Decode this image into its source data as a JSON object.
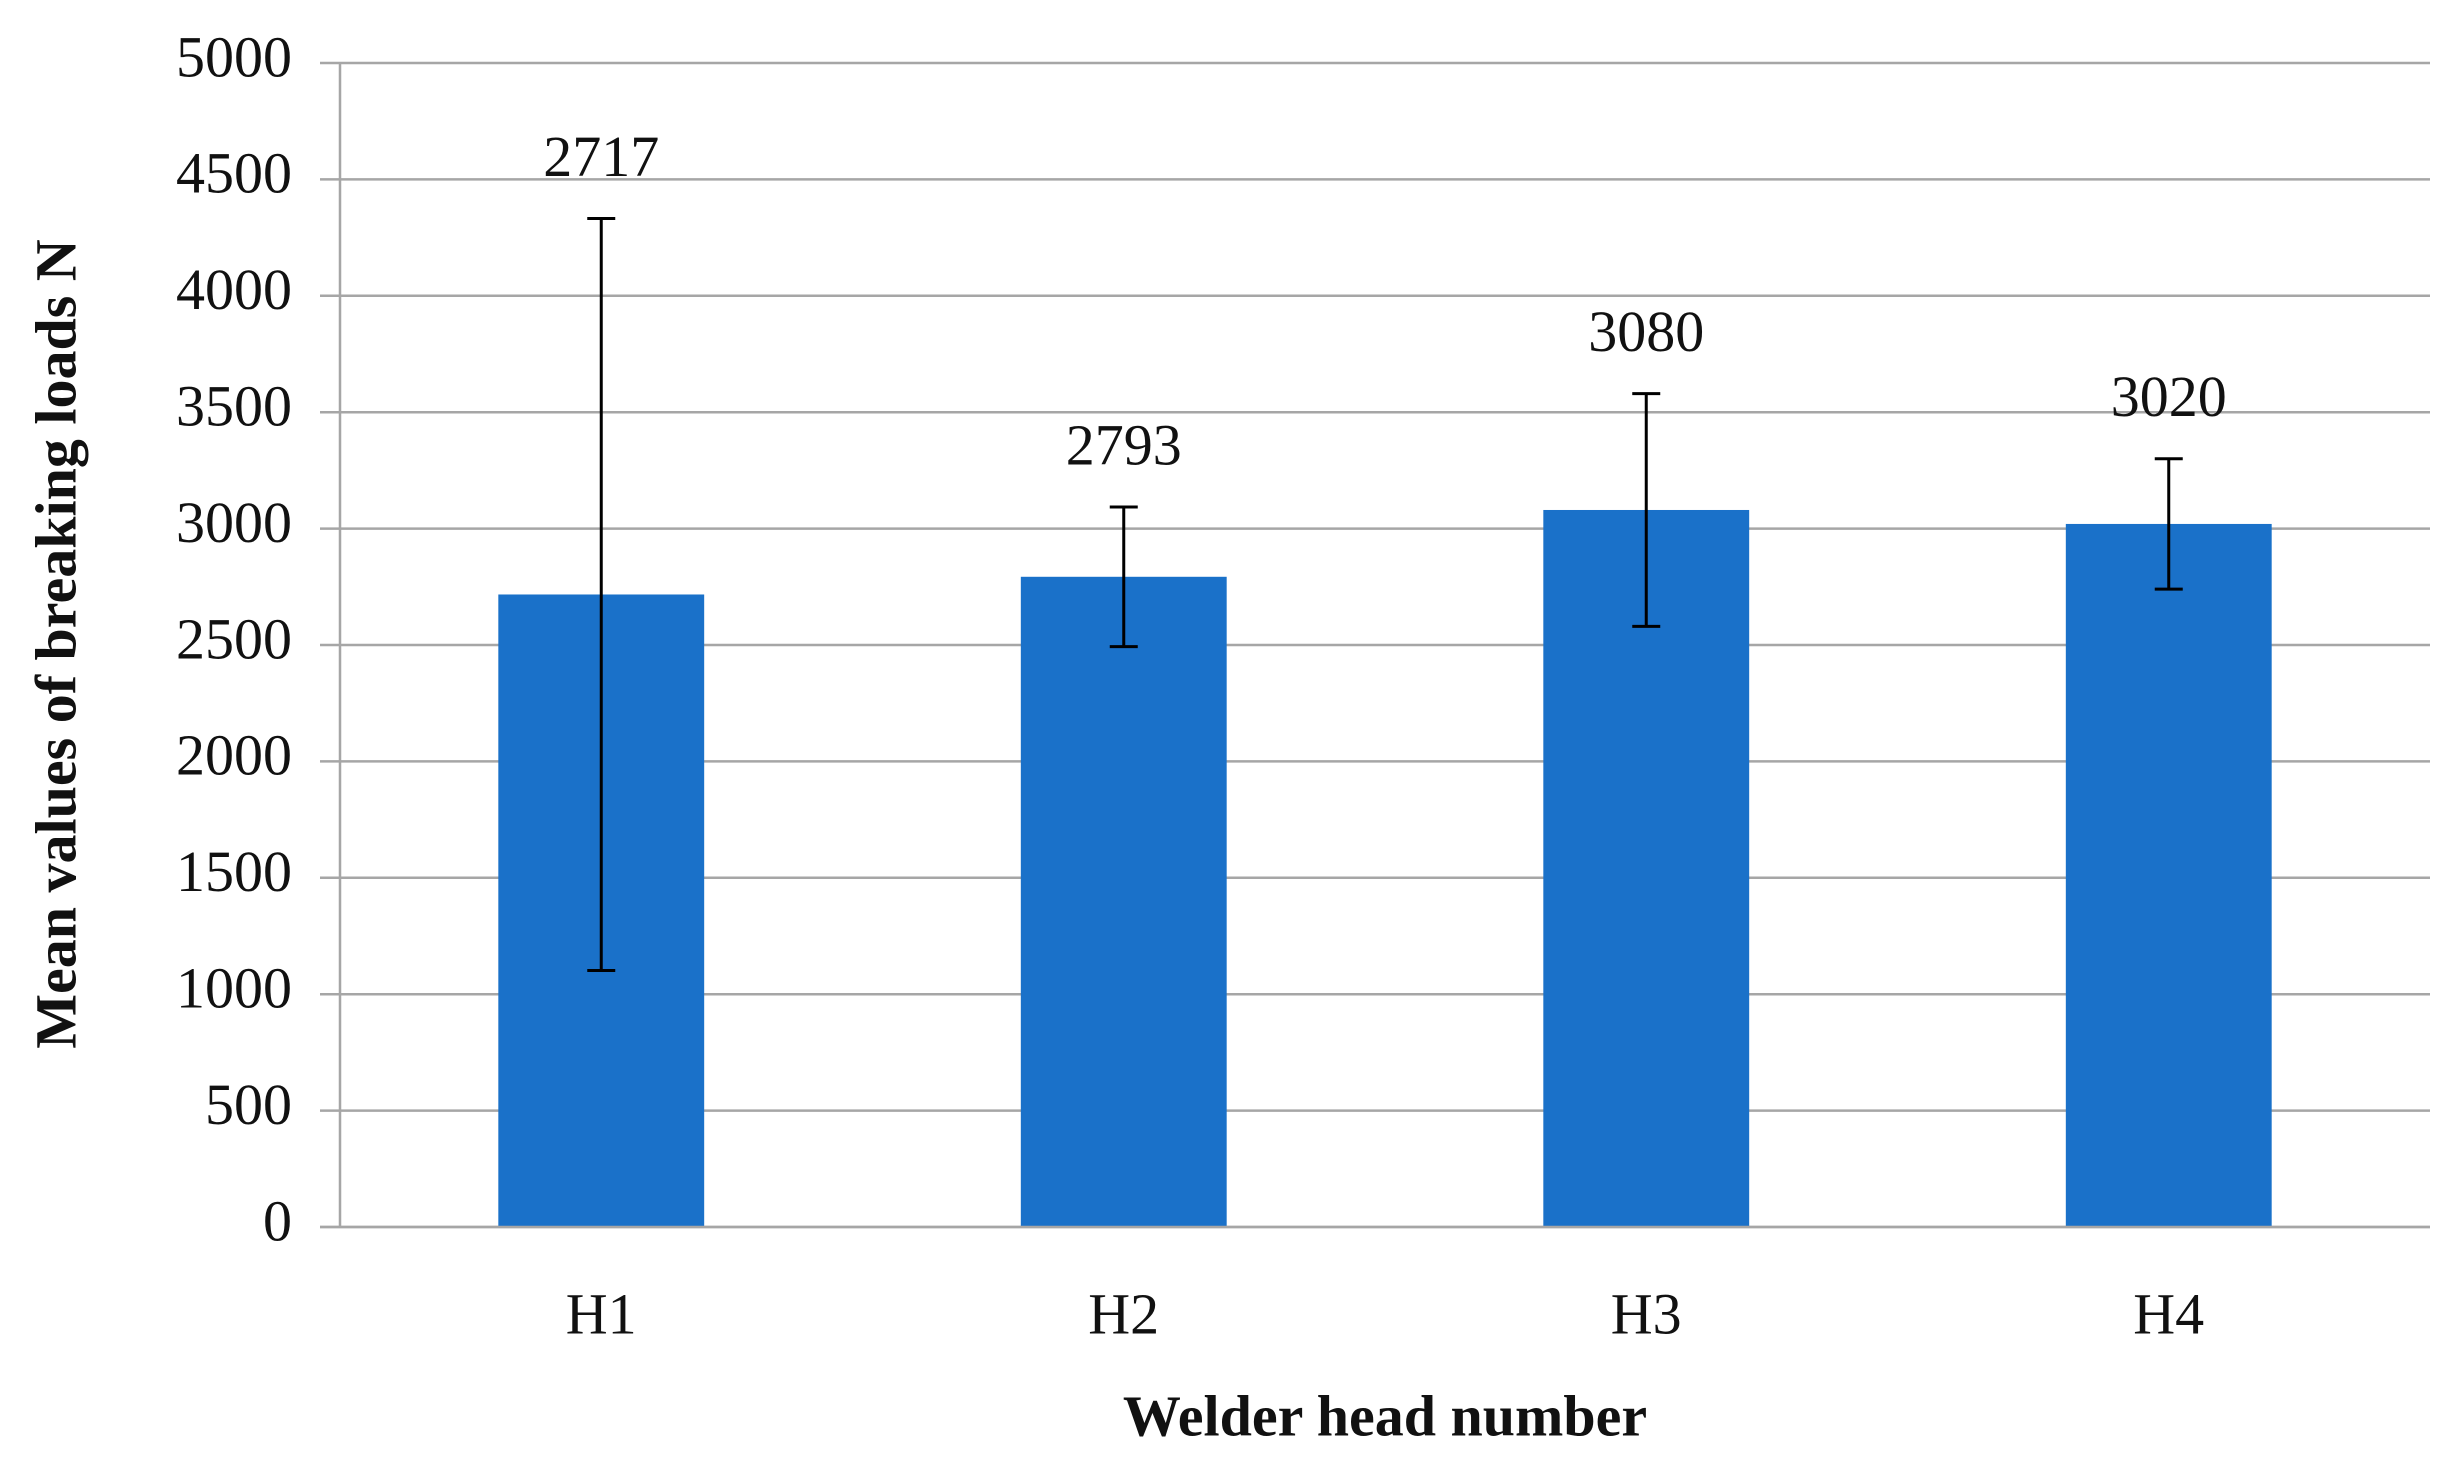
{
  "chart_data": {
    "type": "bar",
    "x_label": "Welder head number",
    "y_label": "Mean values of breaking loads N",
    "categories": [
      "H1",
      "H2",
      "H3",
      "H4"
    ],
    "values": [
      2717,
      2793,
      3080,
      3020
    ],
    "errors": [
      1615,
      300,
      500,
      280
    ],
    "color": "#1a71c9",
    "ylim": [
      0,
      5000
    ],
    "yticks": [
      0,
      500,
      1000,
      1500,
      2000,
      2500,
      3000,
      3500,
      4000,
      4500,
      5000
    ],
    "grid": true
  }
}
